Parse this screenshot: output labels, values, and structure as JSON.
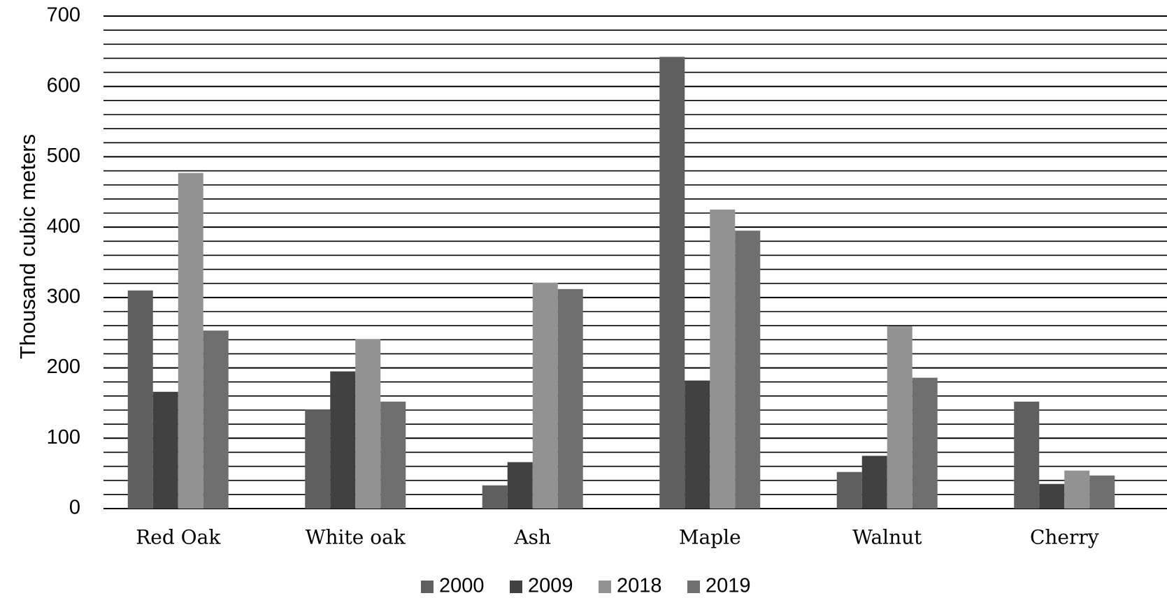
{
  "chart_data": {
    "type": "bar",
    "title": "",
    "xlabel": "",
    "ylabel": "Thousand cubic meters",
    "ylim": [
      0,
      700
    ],
    "yticks": [
      0,
      100,
      200,
      300,
      400,
      500,
      600,
      700
    ],
    "minor_grid_step": 20,
    "grid": true,
    "legend_position": "bottom",
    "categories": [
      "Red Oak",
      "White oak",
      "Ash",
      "Maple",
      "Walnut",
      "Cherry"
    ],
    "series": [
      {
        "name": "2000",
        "color": "#5f5f5f",
        "values": [
          310,
          141,
          33,
          642,
          52,
          152
        ]
      },
      {
        "name": "2009",
        "color": "#414141",
        "values": [
          166,
          195,
          66,
          182,
          75,
          35
        ]
      },
      {
        "name": "2018",
        "color": "#929292",
        "values": [
          477,
          241,
          321,
          425,
          259,
          54
        ]
      },
      {
        "name": "2019",
        "color": "#6f6f6f",
        "values": [
          253,
          152,
          312,
          395,
          186,
          47
        ]
      }
    ]
  }
}
